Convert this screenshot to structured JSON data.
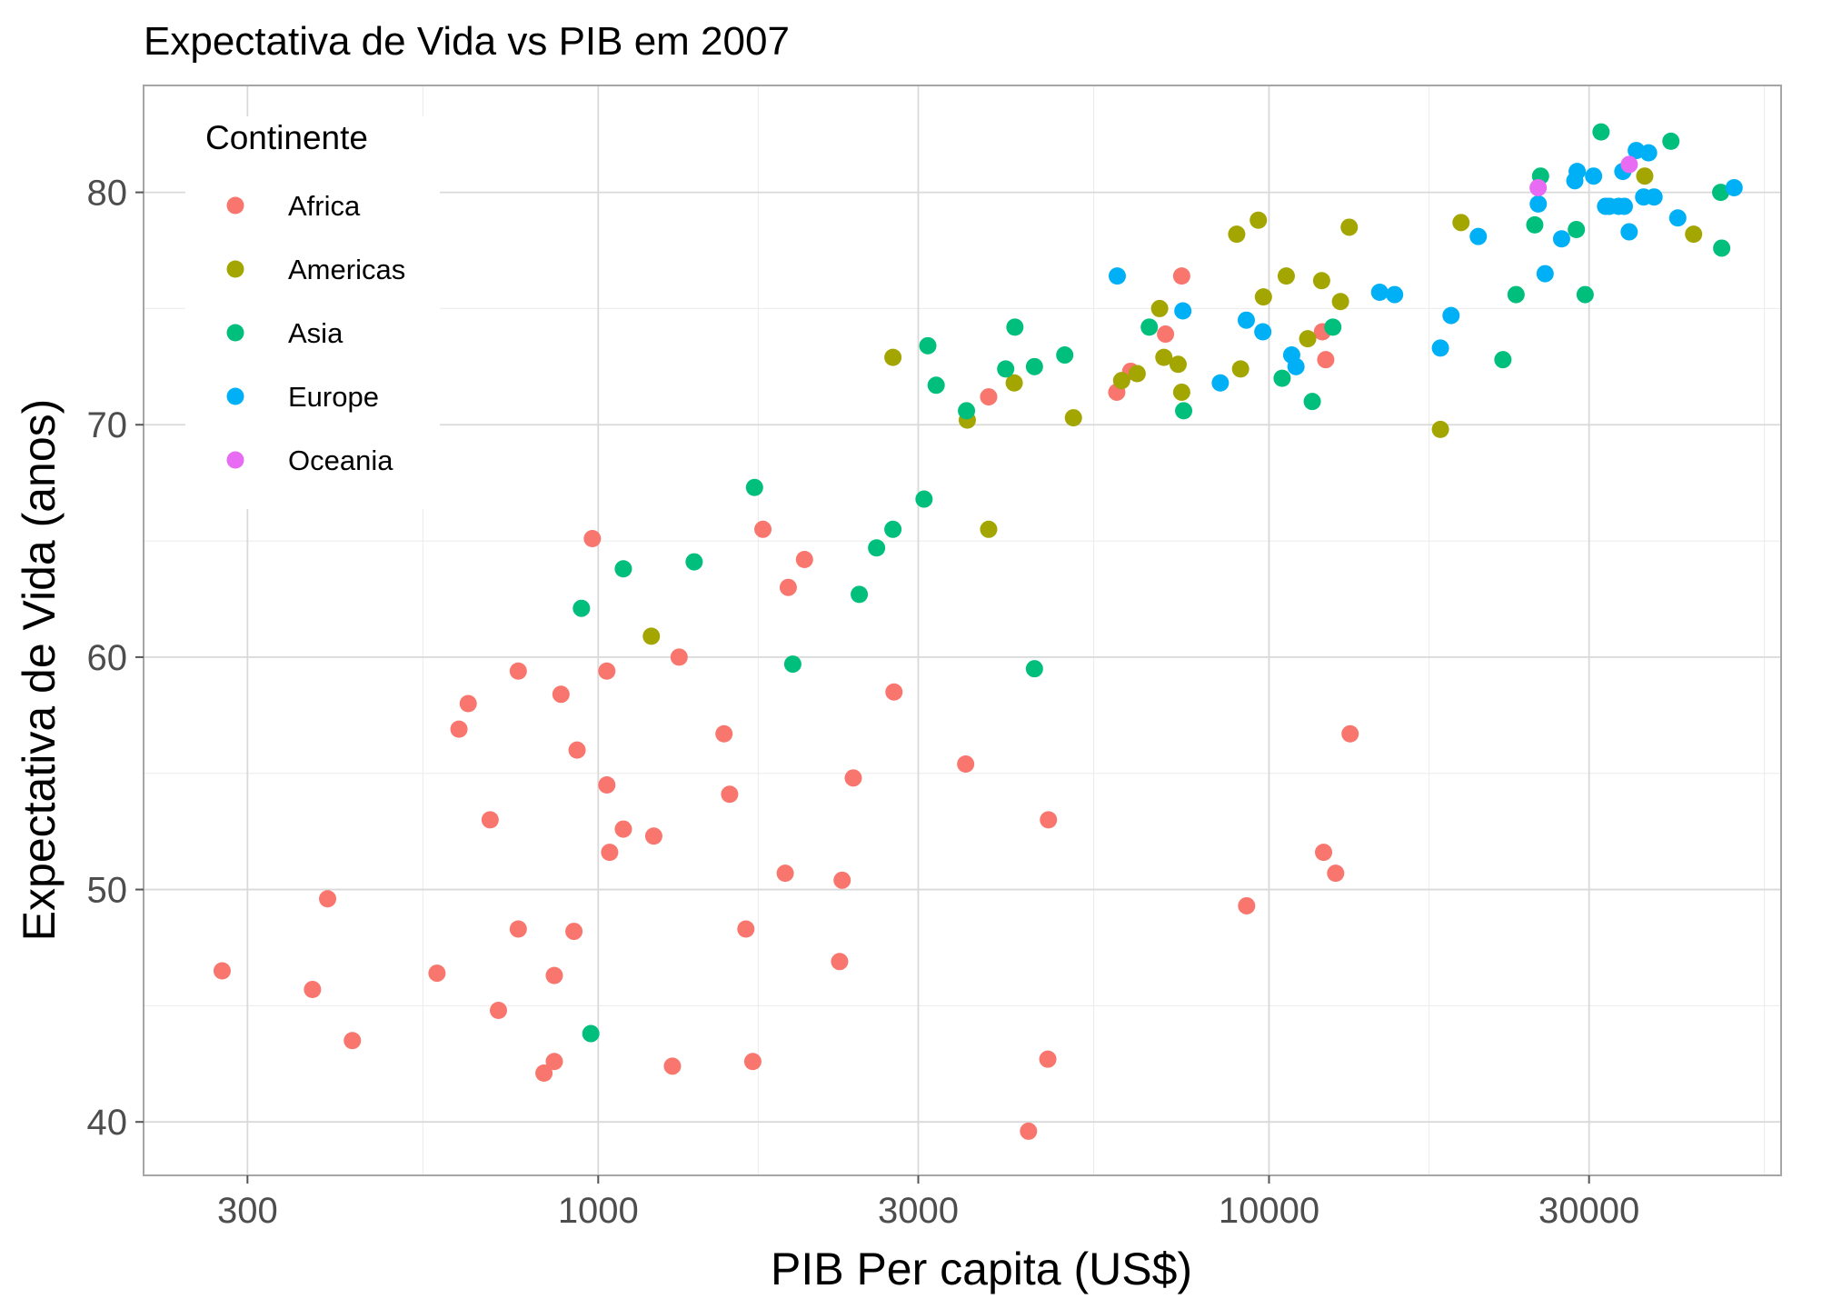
{
  "chart_data": {
    "type": "scatter",
    "title": "Expectativa de Vida vs PIB em 2007",
    "xlabel": "PIB Per capita (US$)",
    "ylabel": "Expectativa de Vida (anos)",
    "x_scale": "log10",
    "xlim": [
      210,
      58000
    ],
    "ylim": [
      37.7,
      84.6
    ],
    "x_ticks": [
      300,
      1000,
      3000,
      10000,
      30000
    ],
    "x_tick_labels": [
      "300",
      "1000",
      "3000",
      "10000",
      "30000"
    ],
    "y_ticks": [
      40,
      50,
      60,
      70,
      80
    ],
    "y_tick_labels": [
      "40",
      "50",
      "60",
      "70",
      "80"
    ],
    "grid": true,
    "legend": {
      "title": "Continente",
      "position": "top-left"
    },
    "series": [
      {
        "name": "Africa",
        "color": "#F8766D",
        "points": [
          [
            275,
            46.5
          ],
          [
            375,
            45.7
          ],
          [
            395,
            49.6
          ],
          [
            430,
            43.5
          ],
          [
            575,
            46.4
          ],
          [
            620,
            56.9
          ],
          [
            640,
            58.0
          ],
          [
            690,
            53.0
          ],
          [
            710,
            44.8
          ],
          [
            760,
            59.4
          ],
          [
            760,
            48.3
          ],
          [
            830,
            42.1
          ],
          [
            860,
            42.6
          ],
          [
            860,
            46.3
          ],
          [
            880,
            58.4
          ],
          [
            920,
            48.2
          ],
          [
            930,
            56.0
          ],
          [
            980,
            65.1
          ],
          [
            1030,
            59.4
          ],
          [
            1030,
            54.5
          ],
          [
            1040,
            51.6
          ],
          [
            1090,
            52.6
          ],
          [
            1210,
            52.3
          ],
          [
            1290,
            42.4
          ],
          [
            1320,
            60.0
          ],
          [
            1540,
            56.7
          ],
          [
            1570,
            54.1
          ],
          [
            1660,
            48.3
          ],
          [
            1700,
            42.6
          ],
          [
            1760,
            65.5
          ],
          [
            1900,
            50.7
          ],
          [
            1920,
            63.0
          ],
          [
            2030,
            64.2
          ],
          [
            2290,
            46.9
          ],
          [
            2310,
            50.4
          ],
          [
            2400,
            54.8
          ],
          [
            2760,
            58.5
          ],
          [
            3530,
            55.4
          ],
          [
            3820,
            71.2
          ],
          [
            4380,
            39.6
          ],
          [
            4680,
            42.7
          ],
          [
            4690,
            53.0
          ],
          [
            5930,
            71.4
          ],
          [
            6220,
            72.3
          ],
          [
            7010,
            73.9
          ],
          [
            7410,
            76.4
          ],
          [
            9260,
            49.3
          ],
          [
            12010,
            74.0
          ],
          [
            12150,
            72.8
          ],
          [
            12060,
            51.6
          ],
          [
            12570,
            50.7
          ],
          [
            13210,
            56.7
          ]
        ]
      },
      {
        "name": "Americas",
        "color": "#A3A500",
        "points": [
          [
            1200,
            60.9
          ],
          [
            2750,
            72.9
          ],
          [
            3550,
            70.2
          ],
          [
            3820,
            65.5
          ],
          [
            4170,
            71.8
          ],
          [
            5110,
            70.3
          ],
          [
            6030,
            71.9
          ],
          [
            6360,
            72.2
          ],
          [
            6870,
            75.0
          ],
          [
            6970,
            72.9
          ],
          [
            7320,
            72.6
          ],
          [
            7410,
            71.4
          ],
          [
            8950,
            78.2
          ],
          [
            9070,
            72.4
          ],
          [
            9640,
            78.8
          ],
          [
            9810,
            75.5
          ],
          [
            10610,
            76.4
          ],
          [
            11420,
            73.7
          ],
          [
            11980,
            76.2
          ],
          [
            12780,
            75.3
          ],
          [
            13170,
            78.5
          ],
          [
            18010,
            69.8
          ],
          [
            19330,
            78.7
          ],
          [
            36320,
            80.7
          ],
          [
            42950,
            78.2
          ]
        ]
      },
      {
        "name": "Asia",
        "color": "#00BF7D",
        "points": [
          [
            944,
            62.1
          ],
          [
            975,
            43.8
          ],
          [
            1090,
            63.8
          ],
          [
            1390,
            64.1
          ],
          [
            1710,
            67.3
          ],
          [
            1950,
            59.7
          ],
          [
            2450,
            62.7
          ],
          [
            2600,
            64.7
          ],
          [
            2750,
            65.5
          ],
          [
            3060,
            66.8
          ],
          [
            3100,
            73.4
          ],
          [
            3190,
            71.7
          ],
          [
            3540,
            70.6
          ],
          [
            4050,
            72.4
          ],
          [
            4180,
            74.2
          ],
          [
            4470,
            59.5
          ],
          [
            4470,
            72.5
          ],
          [
            4960,
            73.0
          ],
          [
            6630,
            74.2
          ],
          [
            7460,
            70.6
          ],
          [
            10460,
            72.0
          ],
          [
            11600,
            71.0
          ],
          [
            12450,
            74.2
          ],
          [
            22320,
            72.8
          ],
          [
            23350,
            75.6
          ],
          [
            24900,
            78.6
          ],
          [
            25400,
            80.7
          ],
          [
            28720,
            78.4
          ],
          [
            29600,
            75.6
          ],
          [
            31260,
            82.6
          ],
          [
            39730,
            82.2
          ],
          [
            47140,
            80.0
          ],
          [
            47300,
            77.6
          ]
        ]
      },
      {
        "name": "Europe",
        "color": "#00B0F6",
        "points": [
          [
            5940,
            76.4
          ],
          [
            7440,
            74.9
          ],
          [
            8460,
            71.8
          ],
          [
            9250,
            74.5
          ],
          [
            9790,
            74.0
          ],
          [
            10810,
            73.0
          ],
          [
            10970,
            72.5
          ],
          [
            14620,
            75.7
          ],
          [
            15390,
            75.6
          ],
          [
            18010,
            73.3
          ],
          [
            18680,
            74.7
          ],
          [
            20510,
            78.1
          ],
          [
            25200,
            79.5
          ],
          [
            28570,
            80.5
          ],
          [
            28800,
            80.9
          ],
          [
            30470,
            80.7
          ],
          [
            32170,
            79.4
          ],
          [
            33200,
            79.4
          ],
          [
            33690,
            80.9
          ],
          [
            34430,
            78.3
          ],
          [
            35280,
            81.8
          ],
          [
            36180,
            79.8
          ],
          [
            36800,
            81.7
          ],
          [
            37500,
            79.8
          ],
          [
            40680,
            78.9
          ],
          [
            25800,
            76.5
          ],
          [
            49360,
            80.2
          ],
          [
            33860,
            79.4
          ],
          [
            31750,
            79.4
          ],
          [
            27300,
            78.0
          ]
        ]
      },
      {
        "name": "Oceania",
        "color": "#E76BF3",
        "points": [
          [
            25190,
            80.2
          ],
          [
            34440,
            81.2
          ]
        ]
      }
    ]
  }
}
